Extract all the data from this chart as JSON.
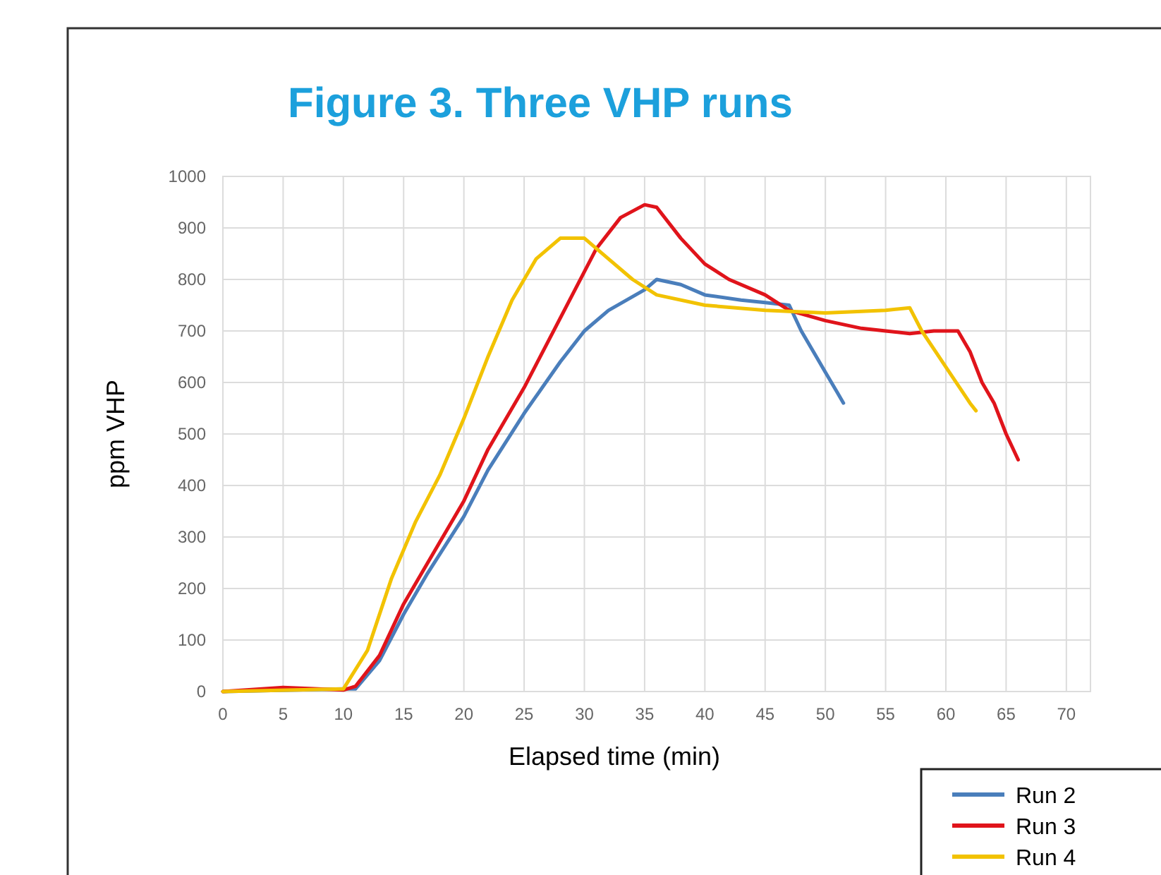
{
  "chart_data": {
    "type": "line",
    "title": "Figure 3. Three VHP runs",
    "xlabel": "Elapsed time (min)",
    "ylabel": "ppm VHP",
    "xlim": [
      0,
      72
    ],
    "xticks": [
      0,
      5,
      10,
      15,
      20,
      25,
      30,
      35,
      40,
      45,
      50,
      55,
      60,
      65,
      70
    ],
    "ylim": [
      0,
      1000
    ],
    "yticks": [
      0,
      100,
      200,
      300,
      400,
      500,
      600,
      700,
      800,
      900,
      1000
    ],
    "grid": true,
    "legend": "bottom right",
    "line_style": "solid",
    "series": [
      {
        "name": "Run 2",
        "color": "#4a7ebb",
        "x": [
          0,
          10,
          11,
          13,
          15,
          17,
          20,
          22,
          25,
          28,
          30,
          32,
          35,
          36,
          38,
          40,
          43,
          45,
          47,
          48,
          50,
          51,
          51.5
        ],
        "values": [
          0,
          5,
          5,
          60,
          150,
          230,
          340,
          430,
          540,
          640,
          700,
          740,
          780,
          800,
          790,
          770,
          760,
          755,
          750,
          700,
          620,
          580,
          560
        ]
      },
      {
        "name": "Run 3",
        "color": "#e0141b",
        "x": [
          0,
          5,
          10,
          11,
          13,
          15,
          18,
          20,
          22,
          25,
          27,
          29,
          31,
          33,
          35,
          36,
          38,
          40,
          42,
          45,
          47,
          50,
          53,
          55,
          57,
          59,
          61,
          62,
          63,
          64,
          65,
          66
        ],
        "values": [
          0,
          8,
          3,
          10,
          70,
          170,
          290,
          370,
          470,
          590,
          680,
          770,
          860,
          920,
          945,
          940,
          880,
          830,
          800,
          770,
          740,
          720,
          705,
          700,
          695,
          700,
          700,
          660,
          600,
          560,
          500,
          450
        ]
      },
      {
        "name": "Run 4",
        "color": "#f2c200",
        "x": [
          0,
          10,
          12,
          14,
          16,
          18,
          20,
          22,
          24,
          26,
          28,
          30,
          32,
          34,
          36,
          40,
          45,
          50,
          55,
          57,
          58,
          60,
          62,
          62.5
        ],
        "values": [
          0,
          5,
          80,
          220,
          330,
          420,
          530,
          650,
          760,
          840,
          880,
          880,
          840,
          800,
          770,
          750,
          740,
          735,
          740,
          745,
          700,
          630,
          560,
          545
        ]
      }
    ]
  }
}
